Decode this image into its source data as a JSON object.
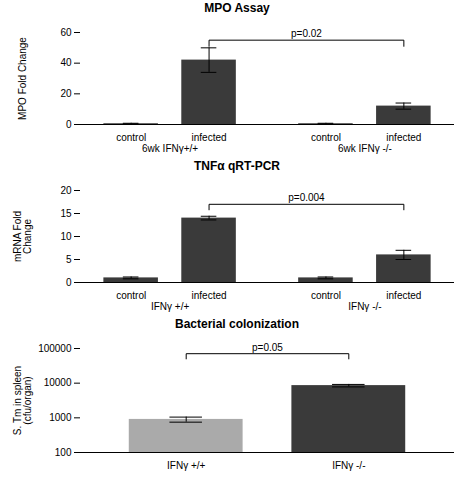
{
  "chart_data": [
    {
      "type": "bar",
      "title": "MPO Assay",
      "ylabel": "MPO Fold Change",
      "categories": [
        "control",
        "infected",
        "control",
        "infected"
      ],
      "group_labels": [
        "6wk IFNγ+/+",
        "6wk IFNγ -/-"
      ],
      "values": [
        0.5,
        42,
        0.5,
        12
      ],
      "errors": [
        0.3,
        8,
        0.3,
        2
      ],
      "colors": [
        "#3a3a3a",
        "#3a3a3a",
        "#3a3a3a",
        "#3a3a3a"
      ],
      "ylim": [
        0,
        60
      ],
      "yticks": [
        0,
        20,
        40,
        60
      ],
      "annotations": [
        {
          "text": "p=0.02",
          "from": 1,
          "to": 3,
          "y": 55,
          "y_bottom": 51
        }
      ]
    },
    {
      "type": "bar",
      "title": "TNFα qRT-PCR",
      "ylabel": "mRNA Fold\nChange",
      "categories": [
        "control",
        "infected",
        "control",
        "infected"
      ],
      "group_labels": [
        "IFNγ +/+",
        "IFNγ -/-"
      ],
      "values": [
        1,
        14,
        1,
        6
      ],
      "errors": [
        0.2,
        0.4,
        0.2,
        1.0
      ],
      "colors": [
        "#3a3a3a",
        "#3a3a3a",
        "#3a3a3a",
        "#3a3a3a"
      ],
      "ylim": [
        0,
        20
      ],
      "yticks": [
        0,
        5,
        10,
        15,
        20
      ],
      "annotations": [
        {
          "text": "p=0.004",
          "from": 1,
          "to": 3,
          "y": 17,
          "y_bottom": 15.8
        }
      ]
    },
    {
      "type": "bar",
      "title": "Bacterial colonization",
      "ylabel": "S. Tm in spleen\n(cfu/organ)",
      "categories": [
        "IFNγ +/+",
        "IFNγ -/-"
      ],
      "values": [
        900,
        8500
      ],
      "errors": [
        150,
        700
      ],
      "colors": [
        "#aaaaaa",
        "#3a3a3a"
      ],
      "log": "y",
      "ylim": [
        100,
        100000
      ],
      "yticks": [
        100,
        1000,
        10000,
        100000
      ],
      "annotations": [
        {
          "text": "p=0.05",
          "from": 0,
          "to": 1,
          "y": 70794.58,
          "y_bottom": 50118.72
        }
      ]
    }
  ]
}
